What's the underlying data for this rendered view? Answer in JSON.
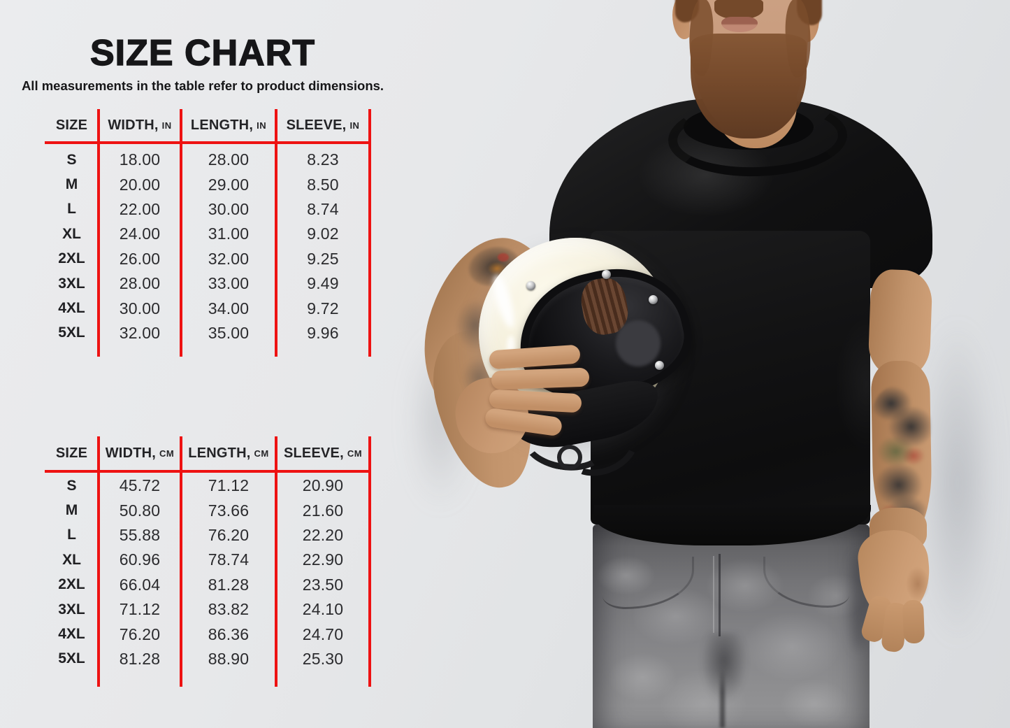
{
  "title": "SIZE CHART",
  "subtitle": "All measurements in the table refer to product dimensions.",
  "tables": [
    {
      "unit": "IN",
      "headers": {
        "size": "SIZE",
        "width": "WIDTH,",
        "length": "LENGTH,",
        "sleeve": "SLEEVE,"
      },
      "rows": [
        {
          "size": "S",
          "width": "18.00",
          "length": "28.00",
          "sleeve": "8.23"
        },
        {
          "size": "M",
          "width": "20.00",
          "length": "29.00",
          "sleeve": "8.50"
        },
        {
          "size": "L",
          "width": "22.00",
          "length": "30.00",
          "sleeve": "8.74"
        },
        {
          "size": "XL",
          "width": "24.00",
          "length": "31.00",
          "sleeve": "9.02"
        },
        {
          "size": "2XL",
          "width": "26.00",
          "length": "32.00",
          "sleeve": "9.25"
        },
        {
          "size": "3XL",
          "width": "28.00",
          "length": "33.00",
          "sleeve": "9.49"
        },
        {
          "size": "4XL",
          "width": "30.00",
          "length": "34.00",
          "sleeve": "9.72"
        },
        {
          "size": "5XL",
          "width": "32.00",
          "length": "35.00",
          "sleeve": "9.96"
        }
      ]
    },
    {
      "unit": "CM",
      "headers": {
        "size": "SIZE",
        "width": "WIDTH,",
        "length": "LENGTH,",
        "sleeve": "SLEEVE,"
      },
      "rows": [
        {
          "size": "S",
          "width": "45.72",
          "length": "71.12",
          "sleeve": "20.90"
        },
        {
          "size": "M",
          "width": "50.80",
          "length": "73.66",
          "sleeve": "21.60"
        },
        {
          "size": "L",
          "width": "55.88",
          "length": "76.20",
          "sleeve": "22.20"
        },
        {
          "size": "XL",
          "width": "60.96",
          "length": "78.74",
          "sleeve": "22.90"
        },
        {
          "size": "2XL",
          "width": "66.04",
          "length": "81.28",
          "sleeve": "23.50"
        },
        {
          "size": "3XL",
          "width": "71.12",
          "length": "83.82",
          "sleeve": "24.10"
        },
        {
          "size": "4XL",
          "width": "76.20",
          "length": "86.36",
          "sleeve": "24.70"
        },
        {
          "size": "5XL",
          "width": "81.28",
          "length": "88.90",
          "sleeve": "25.30"
        }
      ]
    }
  ],
  "colors": {
    "accent_red": "#ee1212",
    "text_dark": "#1d1d1f",
    "background_light": "#e8e9eb",
    "shirt_black": "#141414",
    "helmet_cream": "#f3efdc",
    "jeans_gray": "#7b7b7e",
    "skin": "#c3946f"
  }
}
